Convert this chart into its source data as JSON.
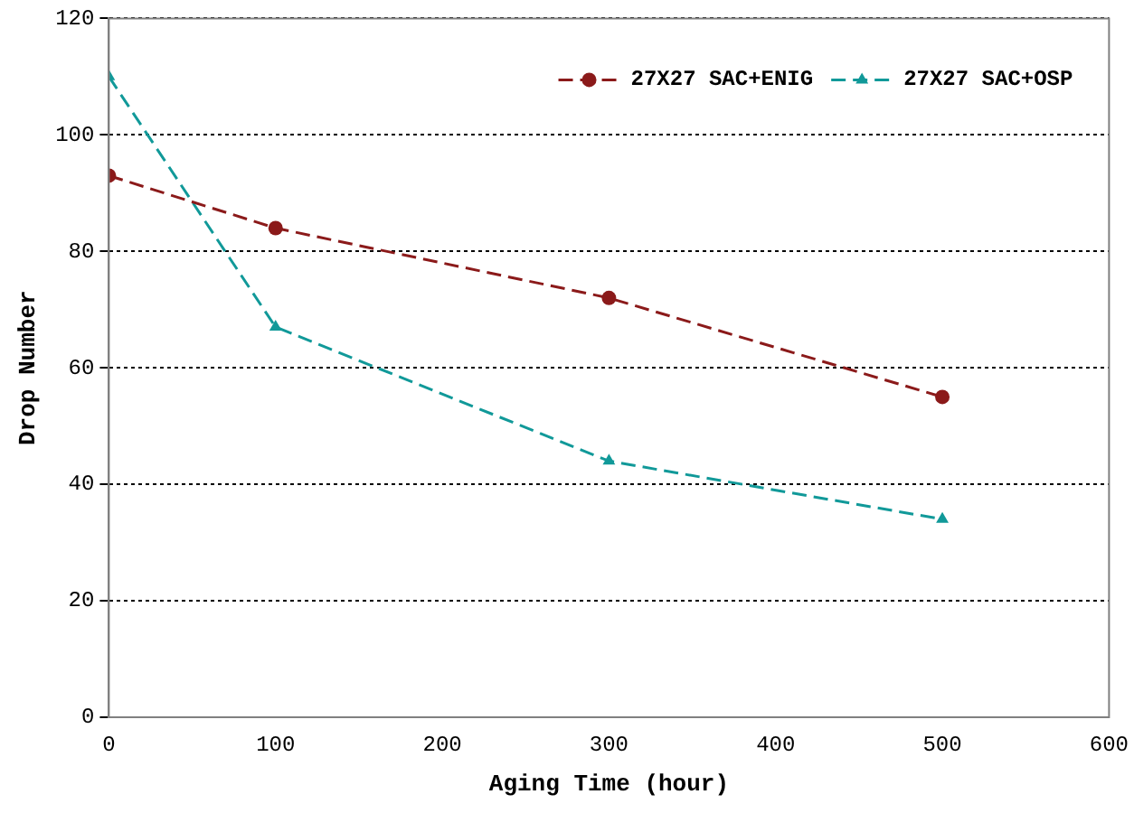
{
  "chart_data": {
    "type": "line",
    "xlabel": "Aging Time (hour)",
    "ylabel": "Drop Number",
    "x": [
      0,
      100,
      300,
      500
    ],
    "series": [
      {
        "name": "27X27 SAC+ENIG",
        "color": "#8b1a1a",
        "values": [
          93,
          84,
          72,
          55
        ],
        "marker": "circle"
      },
      {
        "name": "27X27 SAC+OSP",
        "color": "#119999",
        "values": [
          110,
          67,
          44,
          34
        ],
        "marker": "triangle"
      }
    ],
    "xlim": [
      0,
      600
    ],
    "xticks": [
      0,
      100,
      200,
      300,
      400,
      500,
      600
    ],
    "ylim": [
      0,
      120
    ],
    "yticks": [
      0,
      20,
      40,
      60,
      80,
      100,
      120
    ],
    "grid": "y",
    "legend": "top right",
    "line_style": "dashed"
  }
}
